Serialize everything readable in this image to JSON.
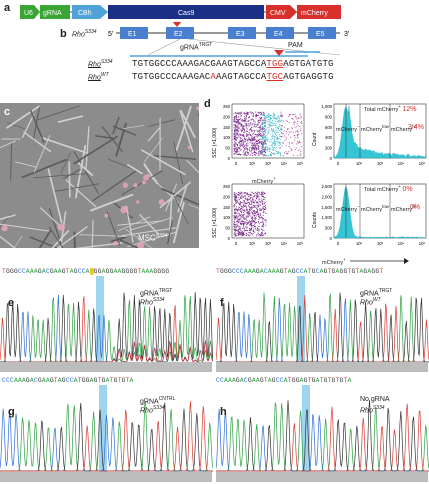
{
  "panel_a": {
    "label": "a",
    "segments": [
      {
        "text": "U6",
        "color": "#3aa535"
      },
      {
        "text": "gRNA",
        "color": "#3aa535"
      },
      {
        "text": "CBh",
        "color": "#4fa3d9"
      },
      {
        "text": "Cas9",
        "color": "#1b2f86"
      },
      {
        "text": "CMV",
        "color": "#d8302b"
      },
      {
        "text": "mCherry",
        "color": "#d8302b"
      }
    ]
  },
  "panel_b": {
    "label": "b",
    "allele": "Rho",
    "allele_sup": "S334",
    "five_prime": "5′",
    "three_prime": "3′",
    "exons": [
      "E1",
      "E2",
      "E3",
      "E4",
      "E5"
    ],
    "grna_label": "gRNA",
    "grna_sup": "TRGT",
    "pam_label": "PAM",
    "seq_s334_name": "Rho",
    "seq_s334_sup": "S334",
    "seq_s334_a": "TGTGGCCCAAAGACGAAGTAGCCA",
    "seq_s334_b": "TGG",
    "seq_s334_c": "AGTGATGTG",
    "seq_wt_name": "Rho",
    "seq_wt_sup": "WT",
    "seq_wt_a": "TGTGGCCCAAAGAC",
    "seq_wt_b": "A",
    "seq_wt_c": "AAGTAGCCA",
    "seq_wt_d": "TGC",
    "seq_wt_e": "AGTGAGGTG"
  },
  "panel_c": {
    "label": "c",
    "caption": "MSC",
    "caption_sup": "S334"
  },
  "panel_d": {
    "label": "d",
    "ssc_label": "SSC (×1,000)",
    "count_label": "Count",
    "counts_label": "Counts",
    "x_label": "mCherry",
    "x_label_sup": "+",
    "scatter_ticks_y": [
      "250",
      "200",
      "150",
      "100",
      "50",
      "0"
    ],
    "hist_ticks_y_top": [
      "1,000",
      "800",
      "600",
      "400",
      "200",
      "0"
    ],
    "hist_ticks_y_bottom": [
      "2,500",
      "2,000",
      "1,500",
      "1,000",
      "500",
      "0"
    ],
    "x_ticks": [
      "0",
      "10²",
      "10³",
      "10⁴",
      "10⁵"
    ],
    "top": {
      "gate_neg": "mCherry",
      "gate_neg_sup": "−",
      "gate_low": "mCherry",
      "gate_low_sup": "low",
      "gate_hi": "mCherry",
      "gate_hi_sup": "hi",
      "total_label": "Total mCherry",
      "total_sup": "+",
      "total_value": "12%",
      "hi_value": "3.4%"
    },
    "bottom": {
      "gate_neg": "mCherry",
      "gate_neg_sup": "−",
      "gate_low": "mCherry",
      "gate_low_sup": "low",
      "gate_hi": "mCherry",
      "gate_hi_sup": "hi",
      "total_label": "Total mCherry",
      "total_sup": "+",
      "total_value": "0%",
      "hi_value": "0%"
    }
  },
  "panel_e": {
    "label": "e",
    "seq": "TGGGCCAAAGACGAAGTAGCCAYGGAGGAAGGGGTAAAGGGG",
    "title": "gRNA",
    "title_sup": "TRGT",
    "sub": "Rho",
    "sub_sup": "S334"
  },
  "panel_f": {
    "label": "f",
    "seq": "TGGGCCCAAAGACAAAGTAGCCATGCAGTGAGGTGTAGAGGT",
    "title": "gRNA",
    "title_sup": "TRGT",
    "sub": "Rho",
    "sub_sup": "WT"
  },
  "panel_g": {
    "label": "g",
    "seq": "CCCAAAGACGAAGTAGCCATGGAGTGATGTGTA",
    "title": "gRNA",
    "title_sup": "CNTRL",
    "sub": "Rho",
    "sub_sup": "S334"
  },
  "panel_h": {
    "label": "h",
    "seq": "CCAAAGACGAAGTAGCCATGGAGTGATGTGTGTA",
    "title": "No gRNA",
    "sub": "Rho",
    "sub_sup": "S334"
  },
  "colors": {
    "A": "#2ea043",
    "C": "#2f6fd6",
    "G": "#333333",
    "T": "#d83a30",
    "highlight": "#9fd4ef",
    "scatter_purple": "#7a2a8c",
    "scatter_cyan": "#39b6c9",
    "hist": "#35c6d6",
    "red_text": "#d8302b"
  }
}
